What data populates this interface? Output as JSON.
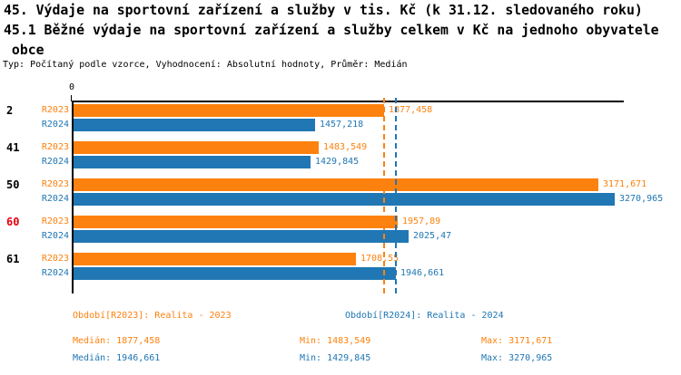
{
  "header": {
    "title_line1": "45. Výdaje na sportovní zařízení a služby v tis. Kč (k 31.12. sledovaného roku)",
    "title_line2": "45.1 Běžné výdaje na sportovní zařízení a služby celkem v Kč na jednoho obyvatele",
    "title_line3": " obce",
    "meta": "Typ: Počítaný podle vzorce, Vyhodnocení: Absolutní hodnoty, Průměr: Medián"
  },
  "chart_data": {
    "type": "bar",
    "orientation": "horizontal",
    "title": "",
    "xlabel": "",
    "ylabel": "",
    "xlim": [
      0,
      3325
    ],
    "zero_tick_label": "0",
    "grid": false,
    "categories": [
      "2",
      "41",
      "50",
      "60",
      "61"
    ],
    "highlighted_category": "60",
    "highlight_color": "#e8000d",
    "series": [
      {
        "name": "R2023",
        "color": "#fd810e",
        "values": [
          1877.458,
          1483.549,
          3171.671,
          1957.89,
          1708.55
        ],
        "value_labels": [
          "1877,458",
          "1483,549",
          "3171,671",
          "1957,89",
          "1708,55"
        ]
      },
      {
        "name": "R2024",
        "color": "#2077b4",
        "values": [
          1457.218,
          1429.845,
          3270.965,
          2025.47,
          1946.661
        ],
        "value_labels": [
          "1457,218",
          "1429,845",
          "3270,965",
          "2025,47",
          "1946,661"
        ]
      }
    ],
    "median_lines": [
      {
        "series": "R2023",
        "value": 1877.458,
        "color": "#fd810e"
      },
      {
        "series": "R2024",
        "value": 1946.661,
        "color": "#2077b4"
      }
    ],
    "legend_position": "bottom"
  },
  "legend": {
    "r2023_label": "Období[R2023]: Realita - 2023",
    "r2024_label": "Období[R2024]: Realita - 2024"
  },
  "stats": {
    "r2023": {
      "median": "Medián: 1877,458",
      "min": "Min: 1483,549",
      "max": "Max: 3171,671"
    },
    "r2024": {
      "median": "Medián: 1946,661",
      "min": "Min: 1429,845",
      "max": "Max: 3270,965"
    }
  },
  "colors": {
    "series_2023": "#fd810e",
    "series_2024": "#2077b4",
    "highlight": "#e8000d",
    "axis": "#000000",
    "background": "#ffffff"
  }
}
